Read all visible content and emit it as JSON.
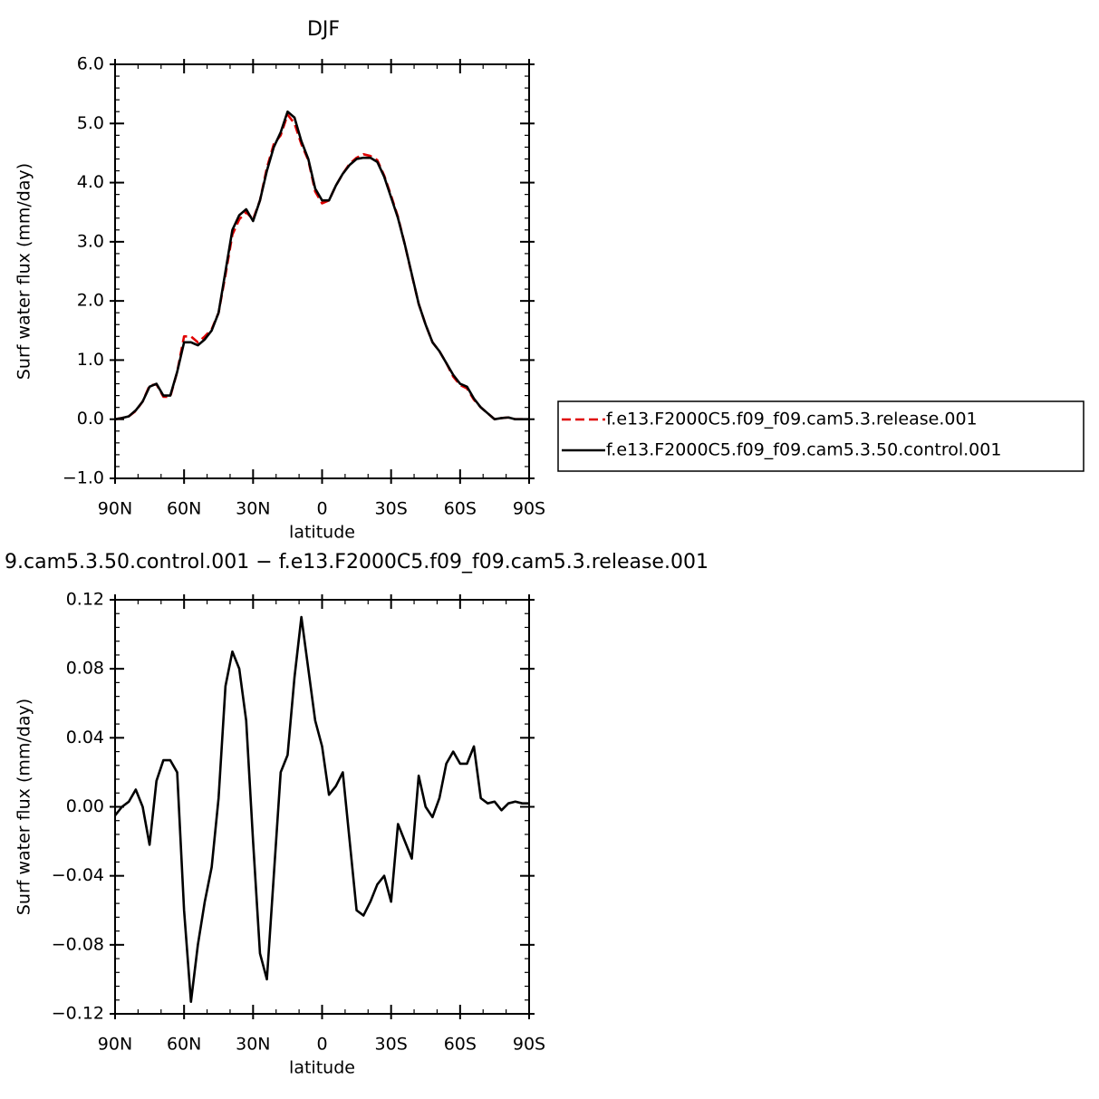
{
  "chart_data": [
    {
      "type": "line",
      "title": "DJF",
      "xlabel": "latitude",
      "ylabel": "Surf water flux (mm/day)",
      "x": [
        90,
        87,
        84,
        81,
        78,
        75,
        72,
        69,
        66,
        63,
        60,
        57,
        54,
        51,
        48,
        45,
        42,
        39,
        36,
        33,
        30,
        27,
        24,
        21,
        18,
        15,
        12,
        9,
        6,
        3,
        0,
        -3,
        -6,
        -9,
        -12,
        -15,
        -18,
        -21,
        -24,
        -27,
        -30,
        -33,
        -36,
        -39,
        -42,
        -45,
        -48,
        -51,
        -54,
        -57,
        -60,
        -63,
        -66,
        -69,
        -72,
        -75,
        -78,
        -81,
        -84,
        -87,
        -90
      ],
      "xlim": [
        90,
        -90
      ],
      "xticks": [
        {
          "value": 90,
          "label": "90N"
        },
        {
          "value": 60,
          "label": "60N"
        },
        {
          "value": 30,
          "label": "30N"
        },
        0,
        {
          "value": -30,
          "label": "30S"
        },
        {
          "value": -60,
          "label": "60S"
        },
        {
          "value": -90,
          "label": "90S"
        }
      ],
      "ylim": [
        -1,
        6
      ],
      "yticks": [
        {
          "value": -1,
          "label": "−1.0"
        },
        {
          "value": 0,
          "label": "0.0"
        },
        {
          "value": 1,
          "label": "1.0"
        },
        {
          "value": 2,
          "label": "2.0"
        },
        {
          "value": 3,
          "label": "3.0"
        },
        {
          "value": 4,
          "label": "4.0"
        },
        {
          "value": 5,
          "label": "5.0"
        },
        {
          "value": 6,
          "label": "6.0"
        }
      ],
      "series": [
        {
          "name": "f.e13.F2000C5.f09_f09.cam5.3.release.001",
          "color": "#e00000",
          "style": "dashed",
          "values": [
            0.0,
            0.02,
            0.05,
            0.14,
            0.3,
            0.57,
            0.59,
            0.38,
            0.38,
            0.8,
            1.4,
            1.4,
            1.3,
            1.4,
            1.52,
            1.8,
            2.44,
            3.12,
            3.38,
            3.5,
            3.38,
            3.7,
            4.25,
            4.65,
            4.8,
            5.15,
            5.0,
            4.65,
            4.38,
            3.85,
            3.65,
            3.7,
            3.95,
            4.15,
            4.32,
            4.42,
            4.48,
            4.45,
            4.38,
            4.12,
            3.78,
            3.42,
            2.95,
            2.44,
            1.95,
            1.6,
            1.3,
            1.15,
            0.95,
            0.72,
            0.58,
            0.52,
            0.33,
            0.2,
            0.1,
            0.0,
            0.02,
            0.03,
            0.0,
            0.0,
            0.0
          ]
        },
        {
          "name": "f.e13.F2000C5.f09_f09.cam5.3.50.control.001",
          "color": "#000000",
          "style": "solid",
          "values": [
            0.0,
            0.02,
            0.05,
            0.15,
            0.3,
            0.55,
            0.6,
            0.4,
            0.4,
            0.8,
            1.3,
            1.3,
            1.25,
            1.35,
            1.5,
            1.8,
            2.5,
            3.2,
            3.45,
            3.55,
            3.35,
            3.7,
            4.2,
            4.6,
            4.85,
            5.2,
            5.1,
            4.7,
            4.4,
            3.9,
            3.7,
            3.7,
            3.95,
            4.15,
            4.3,
            4.4,
            4.42,
            4.42,
            4.35,
            4.1,
            3.75,
            3.4,
            2.95,
            2.45,
            1.95,
            1.6,
            1.3,
            1.15,
            0.95,
            0.75,
            0.6,
            0.55,
            0.35,
            0.2,
            0.1,
            0.0,
            0.02,
            0.03,
            0.0,
            0.0,
            0.0
          ]
        }
      ]
    },
    {
      "type": "line",
      "title": "9.cam5.3.50.control.001 − f.e13.F2000C5.f09_f09.cam5.3.release.001",
      "xlabel": "latitude",
      "ylabel": "Surf water flux (mm/day)",
      "x": [
        90,
        87,
        84,
        81,
        78,
        75,
        72,
        69,
        66,
        63,
        60,
        57,
        54,
        51,
        48,
        45,
        42,
        39,
        36,
        33,
        30,
        27,
        24,
        21,
        18,
        15,
        12,
        9,
        6,
        3,
        0,
        -3,
        -6,
        -9,
        -12,
        -15,
        -18,
        -21,
        -24,
        -27,
        -30,
        -33,
        -36,
        -39,
        -42,
        -45,
        -48,
        -51,
        -54,
        -57,
        -60,
        -63,
        -66,
        -69,
        -72,
        -75,
        -78,
        -81,
        -84,
        -87,
        -90
      ],
      "xlim": [
        90,
        -90
      ],
      "xticks": [
        {
          "value": 90,
          "label": "90N"
        },
        {
          "value": 60,
          "label": "60N"
        },
        {
          "value": 30,
          "label": "30N"
        },
        0,
        {
          "value": -30,
          "label": "30S"
        },
        {
          "value": -60,
          "label": "60S"
        },
        {
          "value": -90,
          "label": "90S"
        }
      ],
      "ylim": [
        -0.12,
        0.12
      ],
      "yticks": [
        {
          "value": -0.12,
          "label": "−0.12"
        },
        {
          "value": -0.08,
          "label": "−0.08"
        },
        {
          "value": -0.04,
          "label": "−0.04"
        },
        {
          "value": 0,
          "label": "0.00"
        },
        0.04,
        0.08,
        0.12
      ],
      "series": [
        {
          "color": "#000000",
          "style": "solid",
          "values": [
            -0.005,
            0.0,
            0.003,
            0.01,
            0.0,
            -0.022,
            0.015,
            0.027,
            0.027,
            0.02,
            -0.06,
            -0.113,
            -0.08,
            -0.055,
            -0.035,
            0.005,
            0.07,
            0.09,
            0.08,
            0.05,
            -0.02,
            -0.085,
            -0.1,
            -0.04,
            0.02,
            0.03,
            0.075,
            0.11,
            0.08,
            0.05,
            0.035,
            0.007,
            0.012,
            0.02,
            -0.02,
            -0.06,
            -0.063,
            -0.055,
            -0.045,
            -0.04,
            -0.055,
            -0.01,
            -0.02,
            -0.03,
            0.018,
            0.0,
            -0.006,
            0.005,
            0.025,
            0.032,
            0.025,
            0.025,
            0.035,
            0.005,
            0.002,
            0.003,
            -0.002,
            0.002,
            0.003,
            0.002,
            0.002
          ]
        }
      ]
    }
  ]
}
